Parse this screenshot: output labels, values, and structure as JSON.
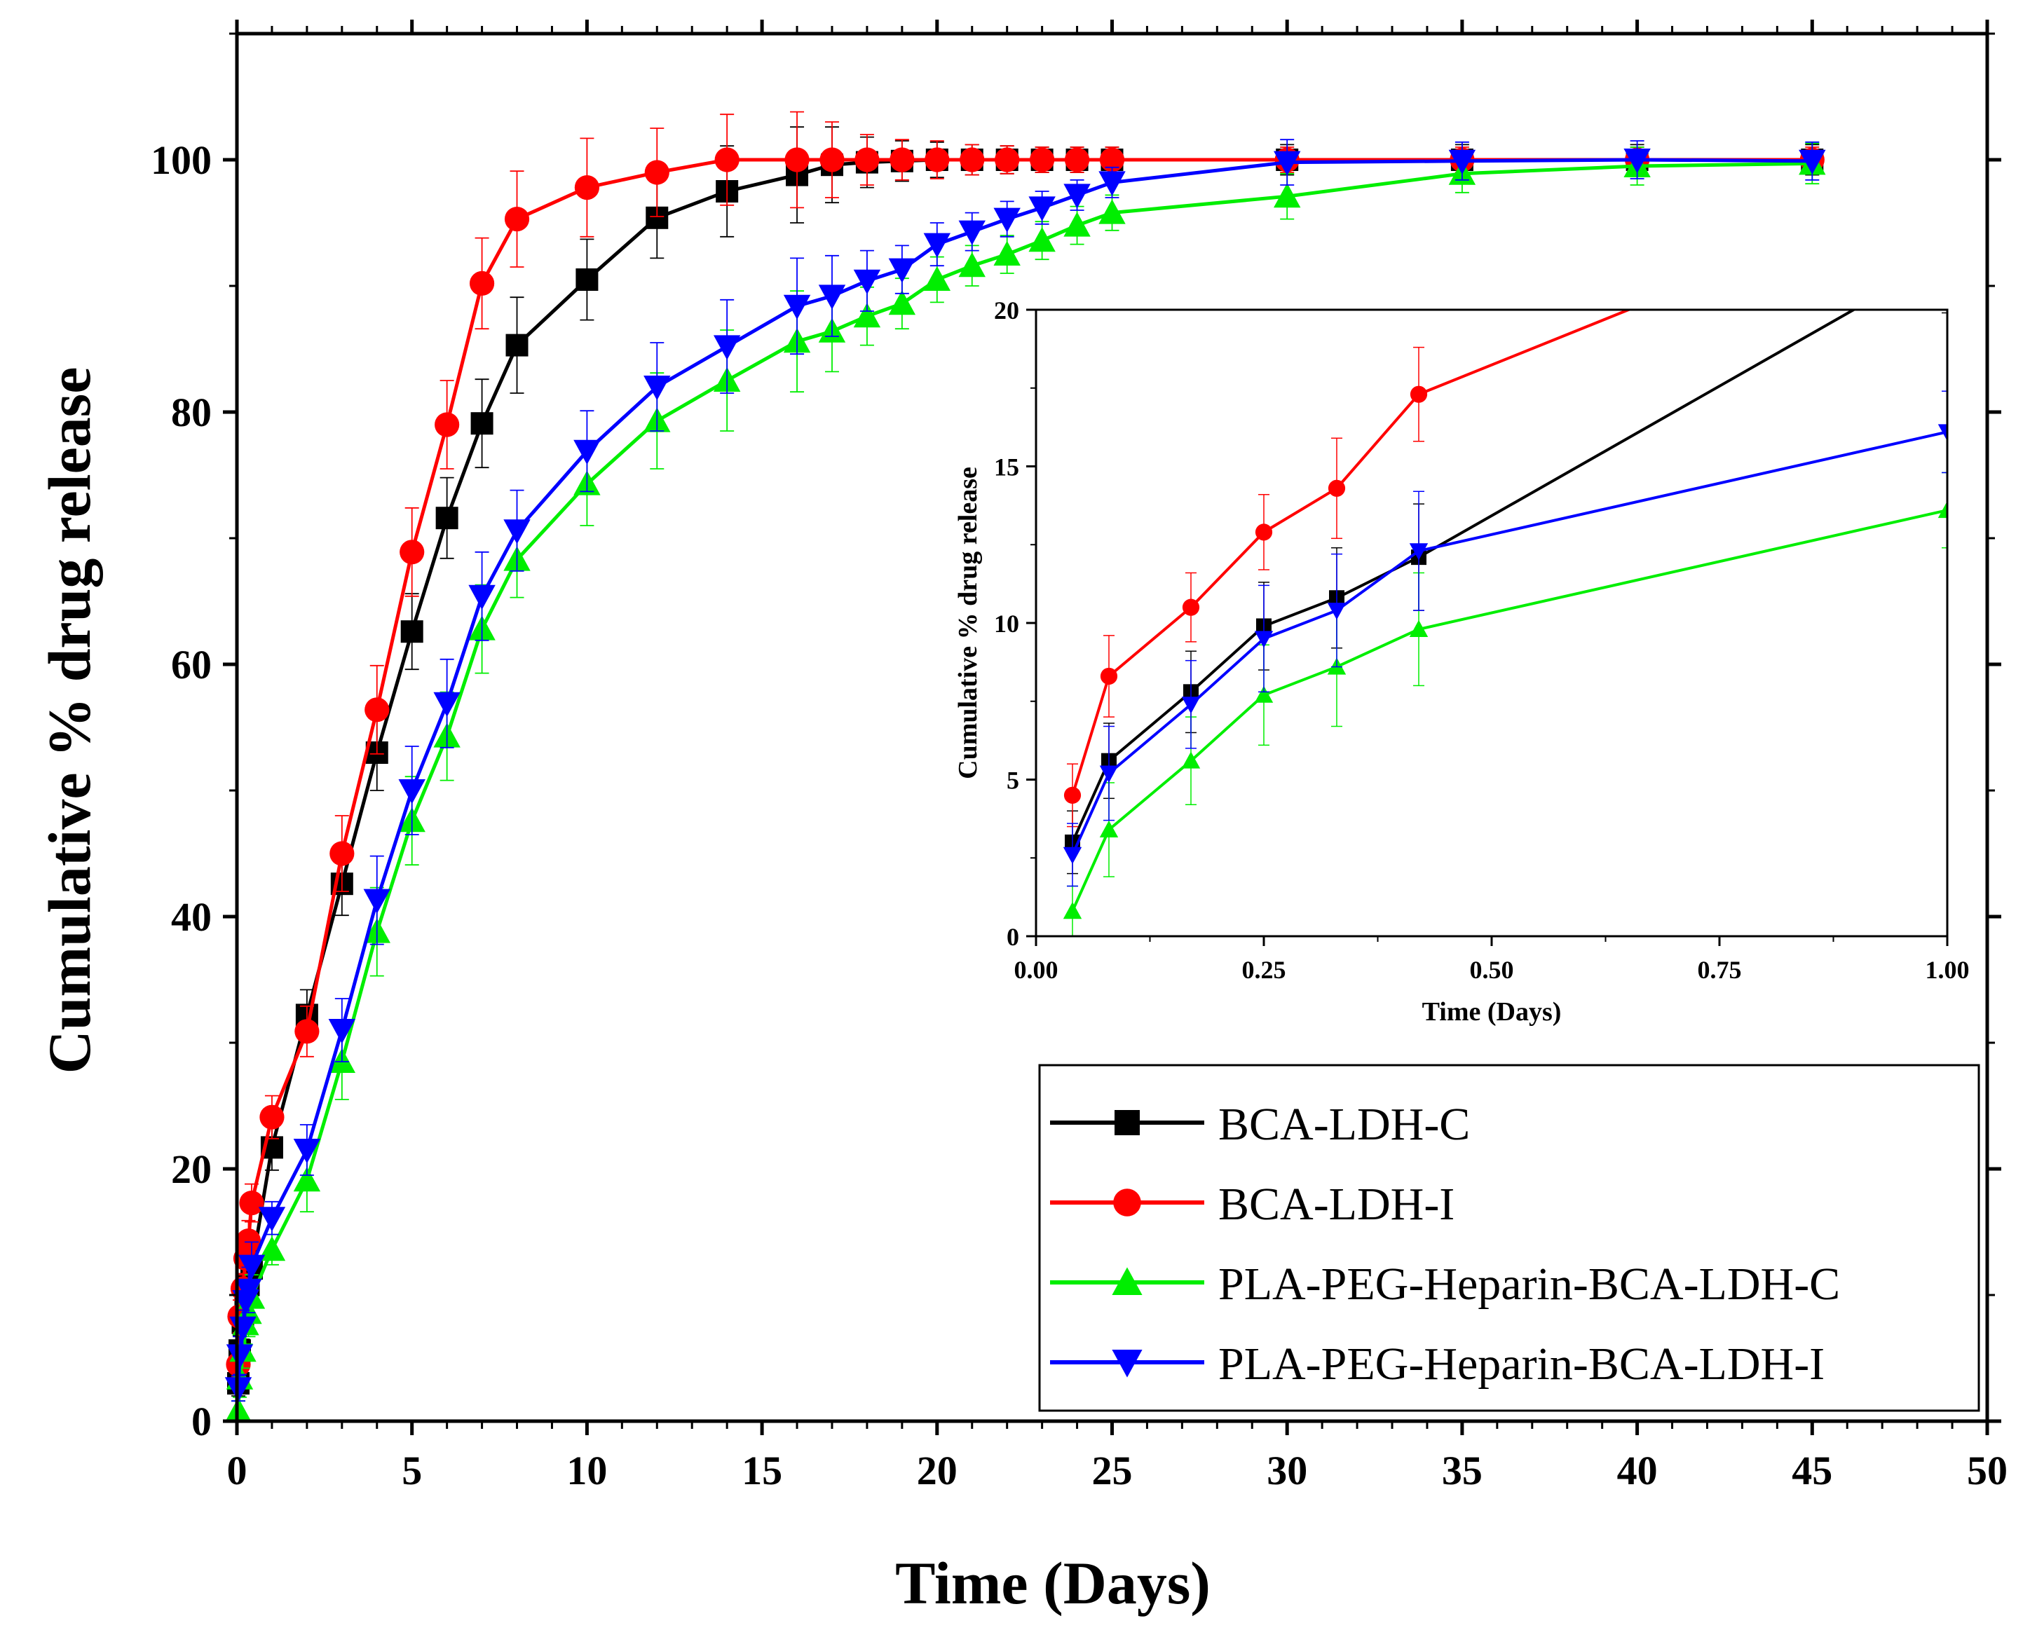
{
  "colors": {
    "BCA-LDH-C": "#000000",
    "BCA-LDH-I": "#ff0000",
    "PLA-PEG-Heparin-BCA-LDH-C": "#00ee00",
    "PLA-PEG-Heparin-BCA-LDH-I": "#0000ff"
  },
  "chart_data": [
    {
      "type": "line",
      "xlabel": "Time (Days)",
      "ylabel": "Cumulative % drug release",
      "xlim": [
        0,
        50
      ],
      "ylim": [
        0,
        110
      ],
      "xticks": [
        0,
        5,
        10,
        15,
        20,
        25,
        30,
        35,
        40,
        45,
        50
      ],
      "yticks": [
        0,
        20,
        40,
        60,
        80,
        100
      ],
      "xtick_labels": [
        "0",
        "5",
        "10",
        "15",
        "20",
        "25",
        "30",
        "35",
        "40",
        "45",
        "50"
      ],
      "ytick_labels": [
        "0",
        "20",
        "40",
        "60",
        "80",
        "100"
      ],
      "legend_location": "bottom-right",
      "series": [
        {
          "name": "BCA-LDH-C",
          "marker": "square",
          "color": "#000000",
          "x": [
            0.04,
            0.08,
            0.17,
            0.25,
            0.33,
            0.42,
            1,
            2,
            3,
            4,
            5,
            6,
            7,
            8,
            10,
            12,
            14,
            16,
            17,
            18,
            19,
            20,
            21,
            22,
            23,
            24,
            25,
            30,
            35,
            40,
            45
          ],
          "y": [
            3.0,
            5.6,
            7.8,
            9.9,
            10.8,
            12.1,
            21.7,
            32.2,
            42.6,
            53.0,
            62.6,
            71.6,
            79.1,
            85.3,
            90.5,
            95.4,
            97.5,
            98.8,
            99.6,
            99.8,
            99.9,
            100,
            100,
            100,
            100,
            100,
            100,
            100,
            100,
            100,
            100
          ],
          "err": [
            1.0,
            1.2,
            1.3,
            1.4,
            1.6,
            1.7,
            1.8,
            2.0,
            2.5,
            3.0,
            3.0,
            3.2,
            3.5,
            3.8,
            3.2,
            3.2,
            3.6,
            3.8,
            3.0,
            2.0,
            1.6,
            1.4,
            1.2,
            1.1,
            1.0,
            1.0,
            1.0,
            1.2,
            1.2,
            1.2,
            1.2
          ]
        },
        {
          "name": "BCA-LDH-I",
          "marker": "circle",
          "color": "#ff0000",
          "x": [
            0.04,
            0.08,
            0.17,
            0.25,
            0.33,
            0.42,
            1,
            2,
            3,
            4,
            5,
            6,
            7,
            8,
            10,
            12,
            14,
            16,
            17,
            18,
            19,
            20,
            21,
            22,
            23,
            24,
            25,
            30,
            35,
            40,
            45
          ],
          "y": [
            4.5,
            8.3,
            10.5,
            12.9,
            14.3,
            17.3,
            24.1,
            30.9,
            45.0,
            56.4,
            68.9,
            79.0,
            90.2,
            95.3,
            97.8,
            99.0,
            100,
            100,
            100,
            100,
            100,
            100,
            100,
            100,
            100,
            100,
            100,
            100,
            100,
            100,
            100
          ],
          "err": [
            1.0,
            1.3,
            1.1,
            1.2,
            1.6,
            1.5,
            1.7,
            2.0,
            3.0,
            3.5,
            3.5,
            3.5,
            3.6,
            3.8,
            3.9,
            3.5,
            3.6,
            3.8,
            3.0,
            2.0,
            1.6,
            1.5,
            1.2,
            1.1,
            1.0,
            1.0,
            1.0,
            1.0,
            1.0,
            1.0,
            1.0
          ]
        },
        {
          "name": "PLA-PEG-Heparin-BCA-LDH-C",
          "marker": "triangle-up",
          "color": "#00ee00",
          "x": [
            0.04,
            0.08,
            0.17,
            0.25,
            0.33,
            0.42,
            1,
            2,
            3,
            4,
            5,
            6,
            7,
            8,
            10,
            12,
            14,
            16,
            17,
            18,
            19,
            20,
            21,
            22,
            23,
            24,
            25,
            30,
            35,
            40,
            45
          ],
          "y": [
            0.8,
            3.4,
            5.6,
            7.7,
            8.6,
            9.8,
            13.6,
            19.1,
            28.5,
            38.8,
            47.6,
            54.3,
            62.8,
            68.3,
            74.3,
            79.3,
            82.5,
            85.6,
            86.4,
            87.6,
            88.6,
            90.5,
            91.6,
            92.5,
            93.6,
            94.8,
            95.8,
            97.1,
            98.9,
            99.5,
            99.7
          ],
          "err": [
            0.8,
            1.5,
            1.4,
            1.6,
            1.9,
            1.8,
            1.2,
            2.5,
            3.0,
            3.5,
            3.5,
            3.5,
            3.5,
            3.0,
            3.3,
            3.8,
            4.0,
            4.0,
            3.2,
            2.3,
            2.0,
            1.8,
            1.6,
            1.5,
            1.5,
            1.5,
            1.4,
            1.8,
            1.5,
            1.5,
            1.6
          ]
        },
        {
          "name": "PLA-PEG-Heparin-BCA-LDH-I",
          "marker": "triangle-down",
          "color": "#0000ff",
          "x": [
            0.04,
            0.08,
            0.17,
            0.25,
            0.33,
            0.42,
            1,
            2,
            3,
            4,
            5,
            6,
            7,
            8,
            10,
            12,
            14,
            16,
            17,
            18,
            19,
            20,
            21,
            22,
            23,
            24,
            25,
            30,
            35,
            40,
            45
          ],
          "y": [
            2.6,
            5.2,
            7.4,
            9.5,
            10.4,
            12.3,
            16.1,
            21.5,
            31.0,
            41.3,
            50.0,
            56.9,
            65.4,
            70.6,
            76.9,
            82.0,
            85.2,
            88.4,
            89.2,
            90.4,
            91.3,
            93.3,
            94.3,
            95.3,
            96.2,
            97.2,
            98.2,
            99.8,
            99.9,
            100,
            99.9
          ],
          "err": [
            1.0,
            1.5,
            1.4,
            1.7,
            1.8,
            1.9,
            1.3,
            2.0,
            2.5,
            3.5,
            3.5,
            3.5,
            3.5,
            3.2,
            3.2,
            3.5,
            3.7,
            3.8,
            3.2,
            2.4,
            1.9,
            1.7,
            1.5,
            1.4,
            1.3,
            1.2,
            1.2,
            1.8,
            1.5,
            1.5,
            1.5
          ]
        }
      ]
    },
    {
      "type": "line",
      "inset": true,
      "xlabel": "Time (Days)",
      "ylabel": "Cumulative % drug release",
      "xlim": [
        0,
        1
      ],
      "ylim": [
        0,
        20
      ],
      "xticks": [
        0,
        0.25,
        0.5,
        0.75,
        1
      ],
      "yticks": [
        0,
        5,
        10,
        15,
        20
      ],
      "xtick_labels": [
        "0.00",
        "0.25",
        "0.50",
        "0.75",
        "1.00"
      ],
      "ytick_labels": [
        "0",
        "5",
        "10",
        "15",
        "20"
      ],
      "note": "zoomed view of the first day of the same four series"
    }
  ]
}
